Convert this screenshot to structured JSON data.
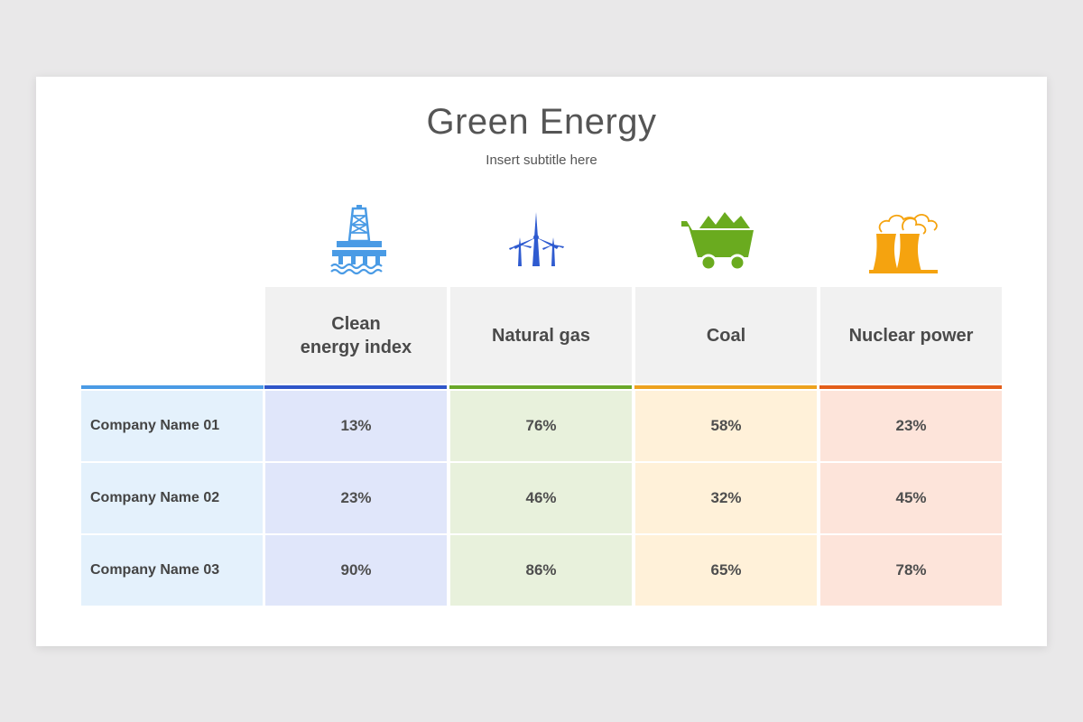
{
  "slide": {
    "title": "Green Energy",
    "subtitle": "Insert subtitle here"
  },
  "icons": [
    {
      "name": "oil-rig-icon",
      "color": "#4a9be5"
    },
    {
      "name": "wind-turbine-icon",
      "color": "#2f5bd0"
    },
    {
      "name": "coal-cart-icon",
      "color": "#6aab1f"
    },
    {
      "name": "nuclear-plant-icon",
      "color": "#f5a30f"
    }
  ],
  "table": {
    "columns": [
      {
        "label": "Clean\nenergy index",
        "accent": "#2f56c9",
        "fill": "#e0e6fa"
      },
      {
        "label": "Natural gas",
        "accent": "#6aa829",
        "fill": "#e8f1dc"
      },
      {
        "label": "Coal",
        "accent": "#eda21e",
        "fill": "#fff1d9"
      },
      {
        "label": "Nuclear power",
        "accent": "#e35e19",
        "fill": "#fde4da"
      }
    ],
    "name_column": {
      "accent": "#4a9be5",
      "fill": "#e4f1fc"
    },
    "rows": [
      {
        "name": "Company Name 01",
        "values": [
          "13%",
          "76%",
          "58%",
          "23%"
        ]
      },
      {
        "name": "Company Name 02",
        "values": [
          "23%",
          "46%",
          "32%",
          "45%"
        ]
      },
      {
        "name": "Company Name 03",
        "values": [
          "90%",
          "86%",
          "65%",
          "78%"
        ]
      }
    ]
  }
}
